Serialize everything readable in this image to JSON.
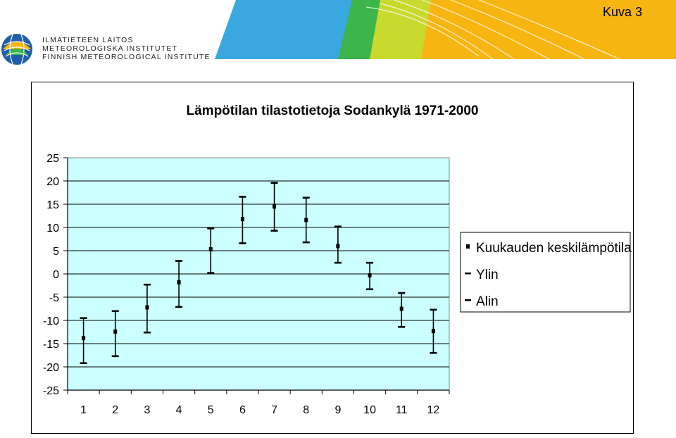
{
  "page": {
    "label": "Kuva 3",
    "logo": {
      "line1": "ILMATIETEEN LAITOS",
      "line2": "METEOROLOGISKA INSTITUTET",
      "line3": "FINNISH METEOROLOGICAL INSTITUTE"
    }
  },
  "colors": {
    "plot_bg": "#ccffff",
    "banner_blue": "#3aa8e0",
    "banner_green": "#3cb54a",
    "banner_yellow": "#f7b512",
    "banner_lime": "#c9d92e"
  },
  "chart_data": {
    "type": "error-bar",
    "title": "Lämpötilan tilastotietoja Sodankylä 1971-2000",
    "xlabel": "",
    "ylabel": "",
    "categories": [
      "1",
      "2",
      "3",
      "4",
      "5",
      "6",
      "7",
      "8",
      "9",
      "10",
      "11",
      "12"
    ],
    "yticks": [
      "25",
      "20",
      "15",
      "10",
      "5",
      "0",
      "-5",
      "-10",
      "-15",
      "-20",
      "-25"
    ],
    "ylim": [
      -25,
      25
    ],
    "grid": true,
    "legend_position": "right",
    "series": [
      {
        "name": "Kuukauden keskilämpötila",
        "values": [
          -13.8,
          -12.4,
          -7.2,
          -1.8,
          5.3,
          11.8,
          14.5,
          11.6,
          6.0,
          -0.3,
          -7.5,
          -12.3
        ]
      },
      {
        "name": "Ylin",
        "values": [
          -9.5,
          -8.0,
          -2.3,
          2.8,
          9.8,
          16.6,
          19.6,
          16.4,
          10.2,
          2.4,
          -4.1,
          -7.7
        ]
      },
      {
        "name": "Alin",
        "values": [
          -19.2,
          -17.7,
          -12.6,
          -7.1,
          0.2,
          6.6,
          9.3,
          6.8,
          2.4,
          -3.3,
          -11.4,
          -17.0
        ]
      }
    ]
  }
}
